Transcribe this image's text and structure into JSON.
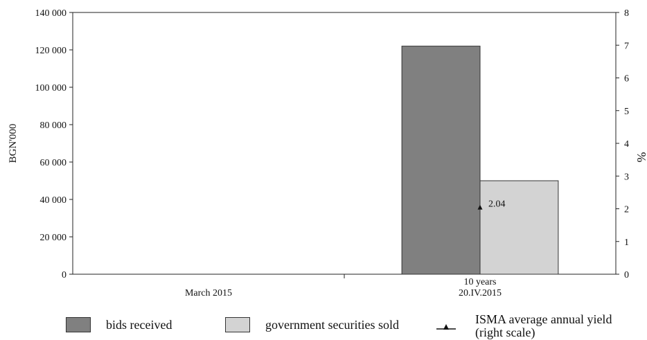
{
  "chart_data": {
    "type": "bar",
    "categories": [
      "March 2015",
      "10 years\n20.IV.2015"
    ],
    "series": [
      {
        "name": "bids received",
        "values": [
          null,
          122000
        ],
        "color": "#808080",
        "axis": "left"
      },
      {
        "name": "government securities sold",
        "values": [
          null,
          50000
        ],
        "color": "#d3d3d3",
        "axis": "left"
      },
      {
        "name": "ISMA average annual yield\n(right scale)",
        "values": [
          null,
          2.04
        ],
        "type": "line-marker",
        "marker": "triangle",
        "axis": "right"
      }
    ],
    "data_labels": [
      {
        "category_index": 1,
        "series": "ISMA average annual yield",
        "text": "2.04"
      }
    ],
    "ylabel": "BGN'000",
    "y2label": "%",
    "ylim": [
      0,
      140000
    ],
    "y2lim": [
      0,
      8
    ],
    "yticks": [
      "0",
      "20 000",
      "40 000",
      "60 000",
      "80 000",
      "100 000",
      "120 000",
      "140 000"
    ],
    "y2ticks": [
      "0",
      "1",
      "2",
      "3",
      "4",
      "5",
      "6",
      "7",
      "8"
    ],
    "grid": false,
    "legend_position": "bottom"
  },
  "legend": {
    "items": [
      {
        "label": "bids received",
        "color": "#808080"
      },
      {
        "label": "government securities sold",
        "color": "#d3d3d3"
      },
      {
        "label": "ISMA average annual yield\n(right scale)",
        "symbol": "triangle-line"
      }
    ]
  }
}
